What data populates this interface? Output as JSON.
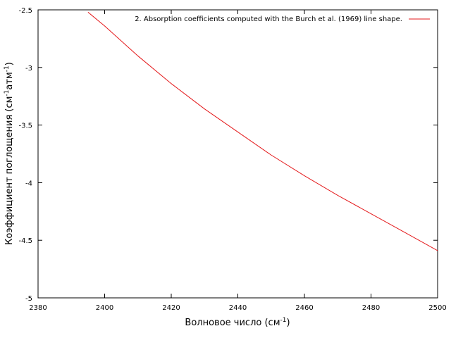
{
  "chart_data": {
    "type": "line",
    "x_label": [
      "Волновое число (см",
      "-1",
      ")"
    ],
    "y_label": [
      "Коэффициент поглощения (см",
      "-1",
      "атм",
      "-1",
      ")"
    ],
    "x": [
      2395,
      2400,
      2410,
      2420,
      2430,
      2440,
      2450,
      2460,
      2470,
      2480,
      2490,
      2500
    ],
    "series": [
      {
        "name": "2. Absorption coefficients computed with the Burch et al. (1969) line shape.",
        "color": "#e41a1c",
        "values": [
          -2.52,
          -2.64,
          -2.9,
          -3.14,
          -3.36,
          -3.56,
          -3.76,
          -3.94,
          -4.11,
          -4.27,
          -4.43,
          -4.59
        ]
      }
    ],
    "xlim": [
      2380,
      2500
    ],
    "xticks": [
      2380,
      2400,
      2420,
      2440,
      2460,
      2480,
      2500
    ],
    "ylim": [
      -5,
      -2.5
    ],
    "yticks": [
      -5,
      -4.5,
      -4,
      -3.5,
      -3,
      -2.5
    ],
    "legend": "top-right"
  }
}
